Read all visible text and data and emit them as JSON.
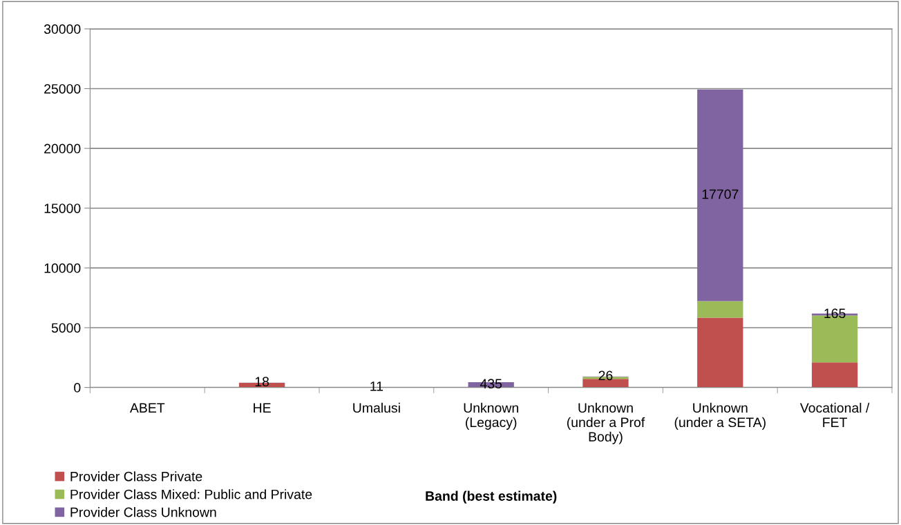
{
  "chart_data": {
    "type": "bar",
    "stacked": true,
    "xlabel": "Band (best estimate)",
    "categories": [
      "ABET",
      "HE",
      "Umalusi",
      "Unknown\n(Legacy)",
      "Unknown\n(under a Prof\nBody)",
      "Unknown\n(under a SETA)",
      "Vocational /\nFET"
    ],
    "series": [
      {
        "name": "Provider Class Private",
        "color": "#c0504d",
        "values": [
          null,
          380,
          null,
          null,
          720,
          5840,
          2100
        ]
      },
      {
        "name": "Provider Class Mixed: Public and Private",
        "color": "#9bbb59",
        "values": [
          null,
          null,
          null,
          null,
          170,
          1380,
          3920
        ]
      },
      {
        "name": "Provider Class Unknown",
        "color": "#8064a2",
        "values": [
          null,
          18,
          11,
          435,
          26,
          17707,
          165
        ],
        "value_labels": [
          null,
          "18",
          "11",
          "435",
          "26",
          "17707",
          "165"
        ]
      }
    ],
    "ylim": [
      0,
      30000
    ],
    "yticks": [
      0,
      5000,
      10000,
      15000,
      20000,
      25000,
      30000
    ],
    "grid": "y",
    "legend": "bottom left"
  }
}
